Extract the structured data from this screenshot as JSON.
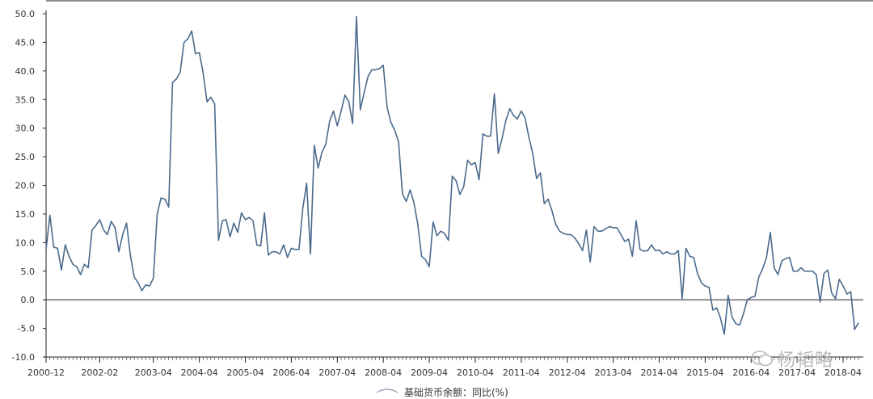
{
  "chart_data": {
    "type": "line",
    "title": "",
    "xlabel": "",
    "ylabel": "",
    "ylim": [
      -10,
      50
    ],
    "yticks": [
      "50.0",
      "45.0",
      "40.0",
      "35.0",
      "30.0",
      "25.0",
      "20.0",
      "15.0",
      "10.0",
      "5.0",
      "0.0",
      "-5.0",
      "-10.0"
    ],
    "xticks": [
      "2000-12",
      "2002-02",
      "2003-04",
      "2004-04",
      "2005-04",
      "2006-04",
      "2007-04",
      "2008-04",
      "2009-04",
      "2010-04",
      "2011-04",
      "2012-04",
      "2013-04",
      "2014-04",
      "2015-04",
      "2016-04",
      "2017-04",
      "2018-04"
    ],
    "grid": false,
    "legend": "bottom",
    "series": [
      {
        "name": "基础货币余额：同比(%)",
        "color": "#4a6a8c",
        "start": "2000-12",
        "frequency": "monthly",
        "values": [
          8.8,
          14.8,
          9.2,
          9.0,
          5.2,
          9.6,
          7.6,
          6.2,
          5.8,
          4.4,
          6.2,
          5.6,
          12.2,
          13.0,
          14.0,
          12.2,
          11.4,
          13.7,
          12.6,
          8.4,
          11.4,
          13.4,
          7.8,
          4.0,
          3.0,
          1.6,
          2.6,
          2.4,
          3.8,
          15.0,
          17.8,
          17.6,
          16.2,
          38.0,
          38.6,
          39.8,
          45.0,
          45.6,
          47.0,
          43.0,
          43.2,
          39.6,
          34.6,
          35.4,
          34.2,
          10.4,
          13.8,
          14.0,
          11.0,
          13.4,
          11.8,
          15.2,
          14.0,
          14.4,
          13.8,
          9.6,
          9.4,
          15.2,
          7.8,
          8.4,
          8.4,
          8.0,
          9.6,
          7.4,
          9.0,
          8.8,
          8.8,
          16.0,
          20.4,
          8.0,
          27.0,
          23.0,
          25.8,
          27.2,
          31.2,
          33.0,
          30.4,
          33.0,
          35.8,
          34.6,
          30.8,
          49.5,
          33.2,
          36.2,
          39.0,
          40.2,
          40.2,
          40.4,
          41.0,
          33.6,
          31.0,
          29.6,
          27.6,
          18.5,
          17.2,
          19.2,
          17.0,
          13.2,
          7.6,
          7.0,
          5.8,
          13.6,
          11.2,
          12.0,
          11.6,
          10.4,
          21.6,
          20.8,
          18.4,
          19.8,
          24.4,
          23.6,
          24.0,
          21.0,
          29.0,
          28.6,
          28.6,
          36.0,
          25.6,
          28.2,
          31.4,
          33.4,
          32.2,
          31.6,
          33.0,
          31.8,
          28.4,
          25.6,
          21.2,
          22.2,
          16.8,
          17.6,
          15.6,
          13.2,
          12.0,
          11.6,
          11.4,
          11.4,
          10.8,
          9.8,
          8.6,
          12.2,
          6.6,
          12.8,
          12.0,
          12.0,
          12.4,
          12.8,
          12.6,
          12.6,
          11.4,
          10.2,
          10.6,
          7.6,
          13.8,
          8.8,
          8.5,
          8.6,
          9.6,
          8.6,
          8.7,
          8.0,
          8.4,
          8.0,
          8.0,
          8.6,
          0.2,
          9.0,
          7.6,
          7.4,
          4.6,
          3.0,
          2.4,
          2.2,
          -1.8,
          -1.4,
          -3.2,
          -6.0,
          0.8,
          -3.0,
          -4.2,
          -4.4,
          -2.4,
          0.0,
          0.4,
          0.6,
          4.0,
          5.4,
          7.4,
          11.8,
          5.6,
          4.4,
          6.8,
          7.2,
          7.4,
          5.0,
          5.0,
          5.6,
          5.0,
          5.0,
          5.0,
          4.4,
          -0.4,
          4.6,
          5.2,
          1.2,
          0.2,
          3.6,
          2.4,
          1.0,
          1.4,
          -5.2,
          -4.0
        ]
      }
    ]
  },
  "watermark": {
    "text": "杨韬略",
    "icon": "wechat-icon"
  }
}
